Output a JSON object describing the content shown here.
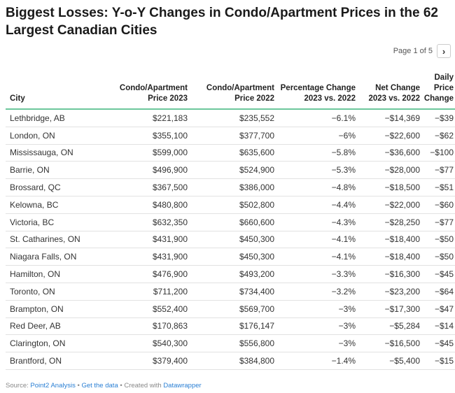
{
  "title": "Biggest Losses: Y-o-Y Changes in Condo/Apartment Prices in the 62 Largest Canadian Cities",
  "pager": {
    "text": "Page 1 of 5",
    "next_icon": "chevron-right-icon"
  },
  "colors": {
    "header_rule": "#6cc79c",
    "link": "#2a7fd4"
  },
  "chart_data": {
    "type": "table",
    "columns": [
      "City",
      "Condo/Apartment Price 2023",
      "Condo/Apartment Price 2022",
      "Percentage Change 2023 vs. 2022",
      "Net Change 2023 vs. 2022",
      "Daily Price Change"
    ],
    "rows": [
      [
        "Lethbridge, AB",
        "$221,183",
        "$235,552",
        "−6.1%",
        "−$14,369",
        "−$39"
      ],
      [
        "London, ON",
        "$355,100",
        "$377,700",
        "−6%",
        "−$22,600",
        "−$62"
      ],
      [
        "Mississauga, ON",
        "$599,000",
        "$635,600",
        "−5.8%",
        "−$36,600",
        "−$100"
      ],
      [
        "Barrie, ON",
        "$496,900",
        "$524,900",
        "−5.3%",
        "−$28,000",
        "−$77"
      ],
      [
        "Brossard, QC",
        "$367,500",
        "$386,000",
        "−4.8%",
        "−$18,500",
        "−$51"
      ],
      [
        "Kelowna, BC",
        "$480,800",
        "$502,800",
        "−4.4%",
        "−$22,000",
        "−$60"
      ],
      [
        "Victoria, BC",
        "$632,350",
        "$660,600",
        "−4.3%",
        "−$28,250",
        "−$77"
      ],
      [
        "St. Catharines, ON",
        "$431,900",
        "$450,300",
        "−4.1%",
        "−$18,400",
        "−$50"
      ],
      [
        "Niagara Falls, ON",
        "$431,900",
        "$450,300",
        "−4.1%",
        "−$18,400",
        "−$50"
      ],
      [
        "Hamilton, ON",
        "$476,900",
        "$493,200",
        "−3.3%",
        "−$16,300",
        "−$45"
      ],
      [
        "Toronto, ON",
        "$711,200",
        "$734,400",
        "−3.2%",
        "−$23,200",
        "−$64"
      ],
      [
        "Brampton, ON",
        "$552,400",
        "$569,700",
        "−3%",
        "−$17,300",
        "−$47"
      ],
      [
        "Red Deer, AB",
        "$170,863",
        "$176,147",
        "−3%",
        "−$5,284",
        "−$14"
      ],
      [
        "Clarington, ON",
        "$540,300",
        "$556,800",
        "−3%",
        "−$16,500",
        "−$45"
      ],
      [
        "Brantford, ON",
        "$379,400",
        "$384,800",
        "−1.4%",
        "−$5,400",
        "−$15"
      ]
    ]
  },
  "footer": {
    "source_prefix": "Source: ",
    "source_link": "Point2 Analysis",
    "sep1": " • ",
    "get_data": "Get the data",
    "sep2": " • Created with ",
    "datawrapper": "Datawrapper"
  }
}
